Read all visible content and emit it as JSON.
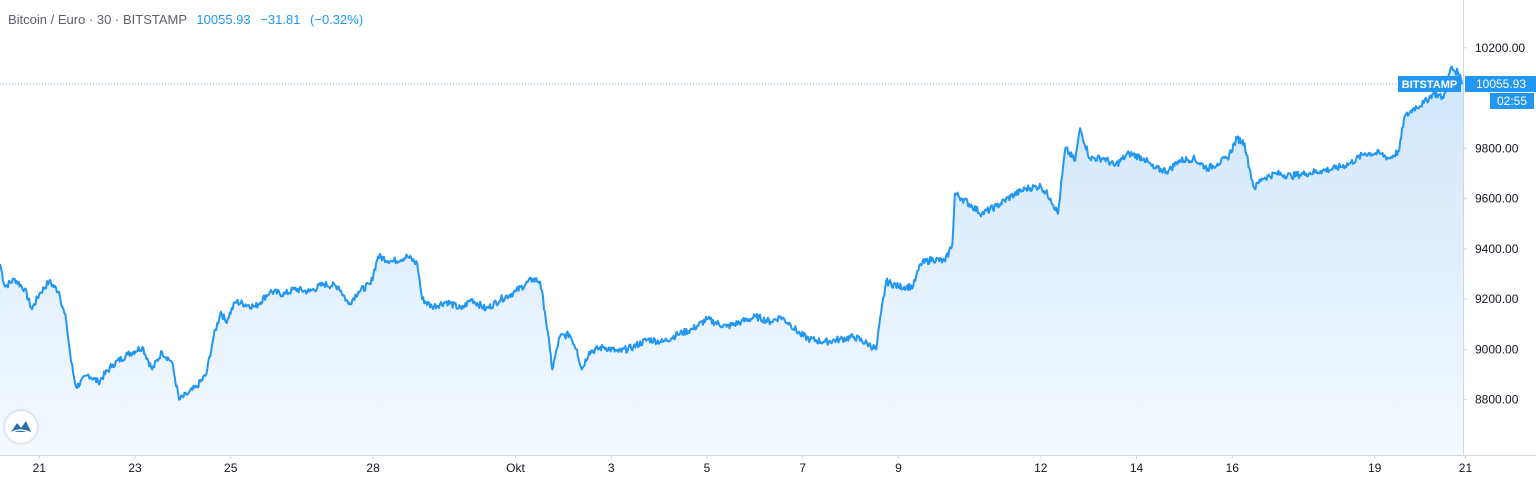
{
  "legend": {
    "symbol": "Bitcoin / Euro",
    "interval": "30",
    "exchange": "BITSTAMP",
    "separator": "·",
    "last": "10055.93",
    "change": "−31.81",
    "change_pct": "(−0.32%)"
  },
  "price_tag": {
    "exchange_label": "BITSTAMP",
    "last_label": "10055.93",
    "countdown": "02:55"
  },
  "logo": {
    "icon": "tradingview-logo-icon"
  },
  "colors": {
    "line": "#2196f3",
    "area_top": "#cfe6fb",
    "area_bottom": "#f4f9ff",
    "tag": "#2196f3",
    "axis_text": "#131722",
    "axis_line": "#cfd6e0"
  },
  "chart_data": {
    "type": "area",
    "title": "",
    "xlabel": "",
    "ylabel": "",
    "ylim": [
      8580,
      10390
    ],
    "xlim": [
      0,
      29.8
    ],
    "last_value": 10055.93,
    "x_ticks": [
      {
        "label": "21",
        "pos": 0.8
      },
      {
        "label": "23",
        "pos": 2.75
      },
      {
        "label": "25",
        "pos": 4.7
      },
      {
        "label": "28",
        "pos": 7.6
      },
      {
        "label": "Okt",
        "pos": 10.5
      },
      {
        "label": "3",
        "pos": 12.45
      },
      {
        "label": "5",
        "pos": 14.4
      },
      {
        "label": "7",
        "pos": 16.35
      },
      {
        "label": "9",
        "pos": 18.3
      },
      {
        "label": "12",
        "pos": 21.2
      },
      {
        "label": "14",
        "pos": 23.15
      },
      {
        "label": "16",
        "pos": 25.1
      },
      {
        "label": "19",
        "pos": 28.0
      },
      {
        "label": "21",
        "pos": 29.85
      }
    ],
    "y_ticks": [
      {
        "label": "8800.00",
        "value": 8800
      },
      {
        "label": "9000.00",
        "value": 9000
      },
      {
        "label": "9200.00",
        "value": 9200
      },
      {
        "label": "9400.00",
        "value": 9400
      },
      {
        "label": "9600.00",
        "value": 9600
      },
      {
        "label": "9800.00",
        "value": 9800
      },
      {
        "label": "10200.00",
        "value": 10200
      }
    ],
    "series": [
      {
        "values": [
          [
            0.0,
            9340
          ],
          [
            0.1,
            9250
          ],
          [
            0.3,
            9280
          ],
          [
            0.5,
            9240
          ],
          [
            0.65,
            9160
          ],
          [
            0.8,
            9220
          ],
          [
            1.0,
            9270
          ],
          [
            1.2,
            9230
          ],
          [
            1.35,
            9110
          ],
          [
            1.45,
            8950
          ],
          [
            1.55,
            8850
          ],
          [
            1.8,
            8900
          ],
          [
            2.0,
            8870
          ],
          [
            2.3,
            8940
          ],
          [
            2.6,
            8980
          ],
          [
            2.9,
            9010
          ],
          [
            3.1,
            8920
          ],
          [
            3.3,
            8990
          ],
          [
            3.5,
            8950
          ],
          [
            3.65,
            8800
          ],
          [
            3.8,
            8820
          ],
          [
            4.0,
            8850
          ],
          [
            4.2,
            8900
          ],
          [
            4.35,
            9050
          ],
          [
            4.5,
            9150
          ],
          [
            4.6,
            9110
          ],
          [
            4.8,
            9190
          ],
          [
            5.2,
            9170
          ],
          [
            5.5,
            9230
          ],
          [
            5.8,
            9220
          ],
          [
            6.0,
            9240
          ],
          [
            6.3,
            9230
          ],
          [
            6.6,
            9260
          ],
          [
            6.9,
            9250
          ],
          [
            7.1,
            9180
          ],
          [
            7.3,
            9230
          ],
          [
            7.55,
            9260
          ],
          [
            7.7,
            9370
          ],
          [
            8.0,
            9350
          ],
          [
            8.3,
            9370
          ],
          [
            8.5,
            9340
          ],
          [
            8.6,
            9200
          ],
          [
            8.8,
            9170
          ],
          [
            9.1,
            9190
          ],
          [
            9.4,
            9160
          ],
          [
            9.6,
            9200
          ],
          [
            9.9,
            9160
          ],
          [
            10.2,
            9200
          ],
          [
            10.5,
            9230
          ],
          [
            10.85,
            9280
          ],
          [
            11.0,
            9270
          ],
          [
            11.1,
            9150
          ],
          [
            11.2,
            9000
          ],
          [
            11.25,
            8920
          ],
          [
            11.4,
            9050
          ],
          [
            11.6,
            9060
          ],
          [
            11.75,
            9000
          ],
          [
            11.85,
            8920
          ],
          [
            12.0,
            8990
          ],
          [
            12.3,
            9010
          ],
          [
            12.6,
            8990
          ],
          [
            12.9,
            9010
          ],
          [
            13.2,
            9040
          ],
          [
            13.5,
            9030
          ],
          [
            13.8,
            9060
          ],
          [
            14.1,
            9080
          ],
          [
            14.4,
            9120
          ],
          [
            14.8,
            9090
          ],
          [
            15.1,
            9110
          ],
          [
            15.4,
            9130
          ],
          [
            15.7,
            9110
          ],
          [
            15.9,
            9130
          ],
          [
            16.1,
            9100
          ],
          [
            16.3,
            9060
          ],
          [
            16.5,
            9040
          ],
          [
            16.8,
            9030
          ],
          [
            17.1,
            9040
          ],
          [
            17.4,
            9050
          ],
          [
            17.7,
            9020
          ],
          [
            17.85,
            9000
          ],
          [
            17.95,
            9150
          ],
          [
            18.05,
            9270
          ],
          [
            18.3,
            9250
          ],
          [
            18.6,
            9250
          ],
          [
            18.75,
            9340
          ],
          [
            19.0,
            9360
          ],
          [
            19.25,
            9350
          ],
          [
            19.4,
            9420
          ],
          [
            19.45,
            9620
          ],
          [
            19.6,
            9600
          ],
          [
            19.8,
            9570
          ],
          [
            20.0,
            9540
          ],
          [
            20.3,
            9570
          ],
          [
            20.6,
            9610
          ],
          [
            20.9,
            9640
          ],
          [
            21.2,
            9650
          ],
          [
            21.4,
            9600
          ],
          [
            21.55,
            9540
          ],
          [
            21.7,
            9800
          ],
          [
            21.9,
            9750
          ],
          [
            22.0,
            9880
          ],
          [
            22.2,
            9760
          ],
          [
            22.5,
            9760
          ],
          [
            22.7,
            9730
          ],
          [
            23.0,
            9780
          ],
          [
            23.3,
            9760
          ],
          [
            23.5,
            9720
          ],
          [
            23.8,
            9710
          ],
          [
            24.0,
            9750
          ],
          [
            24.3,
            9760
          ],
          [
            24.6,
            9720
          ],
          [
            24.8,
            9740
          ],
          [
            25.0,
            9760
          ],
          [
            25.2,
            9840
          ],
          [
            25.35,
            9820
          ],
          [
            25.45,
            9720
          ],
          [
            25.55,
            9640
          ],
          [
            25.7,
            9680
          ],
          [
            26.0,
            9700
          ],
          [
            26.3,
            9690
          ],
          [
            26.6,
            9700
          ],
          [
            26.9,
            9710
          ],
          [
            27.2,
            9720
          ],
          [
            27.5,
            9740
          ],
          [
            27.8,
            9780
          ],
          [
            28.1,
            9780
          ],
          [
            28.3,
            9760
          ],
          [
            28.5,
            9790
          ],
          [
            28.6,
            9920
          ],
          [
            28.8,
            9960
          ],
          [
            29.0,
            9980
          ],
          [
            29.2,
            10020
          ],
          [
            29.4,
            10000
          ],
          [
            29.55,
            10120
          ],
          [
            29.7,
            10100
          ],
          [
            29.8,
            10060
          ]
        ]
      }
    ]
  }
}
